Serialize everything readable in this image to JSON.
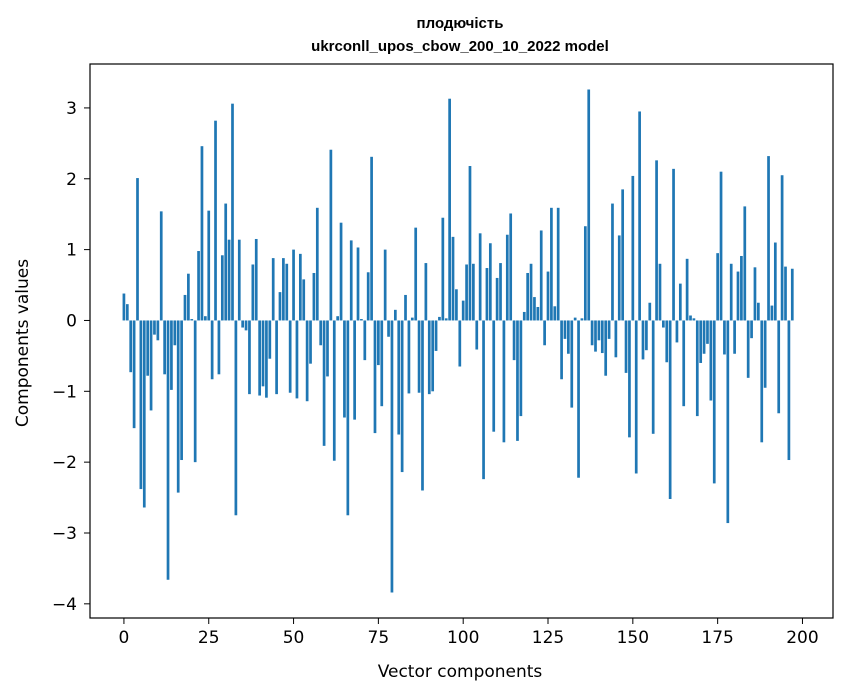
{
  "chart_data": {
    "type": "bar",
    "title_line1": "плодючість",
    "title_line2": "ukrconll_upos_cbow_200_10_2022 model",
    "xlabel": "Vector components",
    "ylabel": "Components values",
    "bar_color": "#1f77b4",
    "xlim": [
      -10,
      209
    ],
    "ylim": [
      -4.2,
      3.62
    ],
    "x_ticks": [
      0,
      25,
      50,
      75,
      100,
      125,
      150,
      175,
      200
    ],
    "x_tick_labels": [
      "0",
      "25",
      "50",
      "75",
      "100",
      "125",
      "150",
      "175",
      "200"
    ],
    "y_ticks": [
      3,
      2,
      1,
      0,
      -1,
      -2,
      -3,
      -4
    ],
    "y_tick_labels": [
      "3",
      "2",
      "1",
      "0",
      "−1",
      "−2",
      "−3",
      "−4"
    ],
    "values": [
      0.38,
      0.23,
      -0.73,
      -1.52,
      2.01,
      -2.38,
      -2.64,
      -0.78,
      -1.27,
      -0.2,
      -0.28,
      1.54,
      -0.76,
      -3.66,
      -0.98,
      -0.35,
      -2.43,
      -1.97,
      0.36,
      0.66,
      0.02,
      -2.0,
      0.98,
      2.46,
      0.06,
      1.55,
      -0.83,
      2.82,
      -0.76,
      0.92,
      1.65,
      1.14,
      3.06,
      -2.75,
      1.14,
      -0.1,
      -0.14,
      -1.04,
      0.79,
      1.15,
      -1.06,
      -0.93,
      -1.09,
      -0.54,
      0.88,
      -1.04,
      0.4,
      0.88,
      0.8,
      -1.02,
      1.0,
      -1.1,
      0.94,
      0.58,
      -1.14,
      -0.61,
      0.67,
      1.59,
      -0.35,
      -1.77,
      -0.79,
      2.41,
      -1.98,
      0.06,
      1.38,
      -1.37,
      -2.75,
      1.13,
      -1.4,
      1.03,
      0.02,
      -0.56,
      0.68,
      2.31,
      -1.59,
      -0.63,
      -1.21,
      1.0,
      -0.23,
      -3.84,
      0.15,
      -1.61,
      -2.14,
      0.36,
      -1.03,
      0.04,
      1.31,
      -1.02,
      -2.4,
      0.81,
      -1.04,
      -1.0,
      -0.43,
      0.05,
      1.45,
      0.03,
      3.13,
      1.18,
      0.44,
      -0.65,
      0.28,
      0.79,
      2.18,
      0.8,
      -0.41,
      1.23,
      -2.24,
      0.74,
      1.09,
      -1.57,
      0.6,
      0.81,
      -1.72,
      1.21,
      1.51,
      -0.56,
      -1.7,
      -1.35,
      0.12,
      0.67,
      0.8,
      0.33,
      0.19,
      1.27,
      -0.35,
      0.69,
      1.59,
      0.2,
      1.59,
      -0.83,
      -0.26,
      -0.47,
      -1.23,
      0.04,
      -2.22,
      0.03,
      1.33,
      3.26,
      -0.35,
      -0.44,
      -0.28,
      -0.46,
      -0.78,
      -0.26,
      1.65,
      -0.52,
      1.2,
      1.85,
      -0.74,
      -1.65,
      2.04,
      -2.16,
      2.95,
      -0.55,
      -0.42,
      0.25,
      -1.6,
      2.26,
      0.8,
      -0.1,
      -0.59,
      -2.52,
      2.14,
      -0.31,
      0.52,
      -1.21,
      0.87,
      0.07,
      0.03,
      -1.35,
      -0.6,
      -0.47,
      -0.33,
      -1.13,
      -2.3,
      0.95,
      2.1,
      -0.48,
      -2.86,
      0.8,
      -0.47,
      0.69,
      0.91,
      1.61,
      -0.81,
      -0.25,
      0.75,
      0.25,
      -1.72,
      -0.95,
      2.32,
      0.21,
      1.1,
      -1.31,
      2.05,
      0.76,
      -1.97,
      0.73
    ]
  }
}
